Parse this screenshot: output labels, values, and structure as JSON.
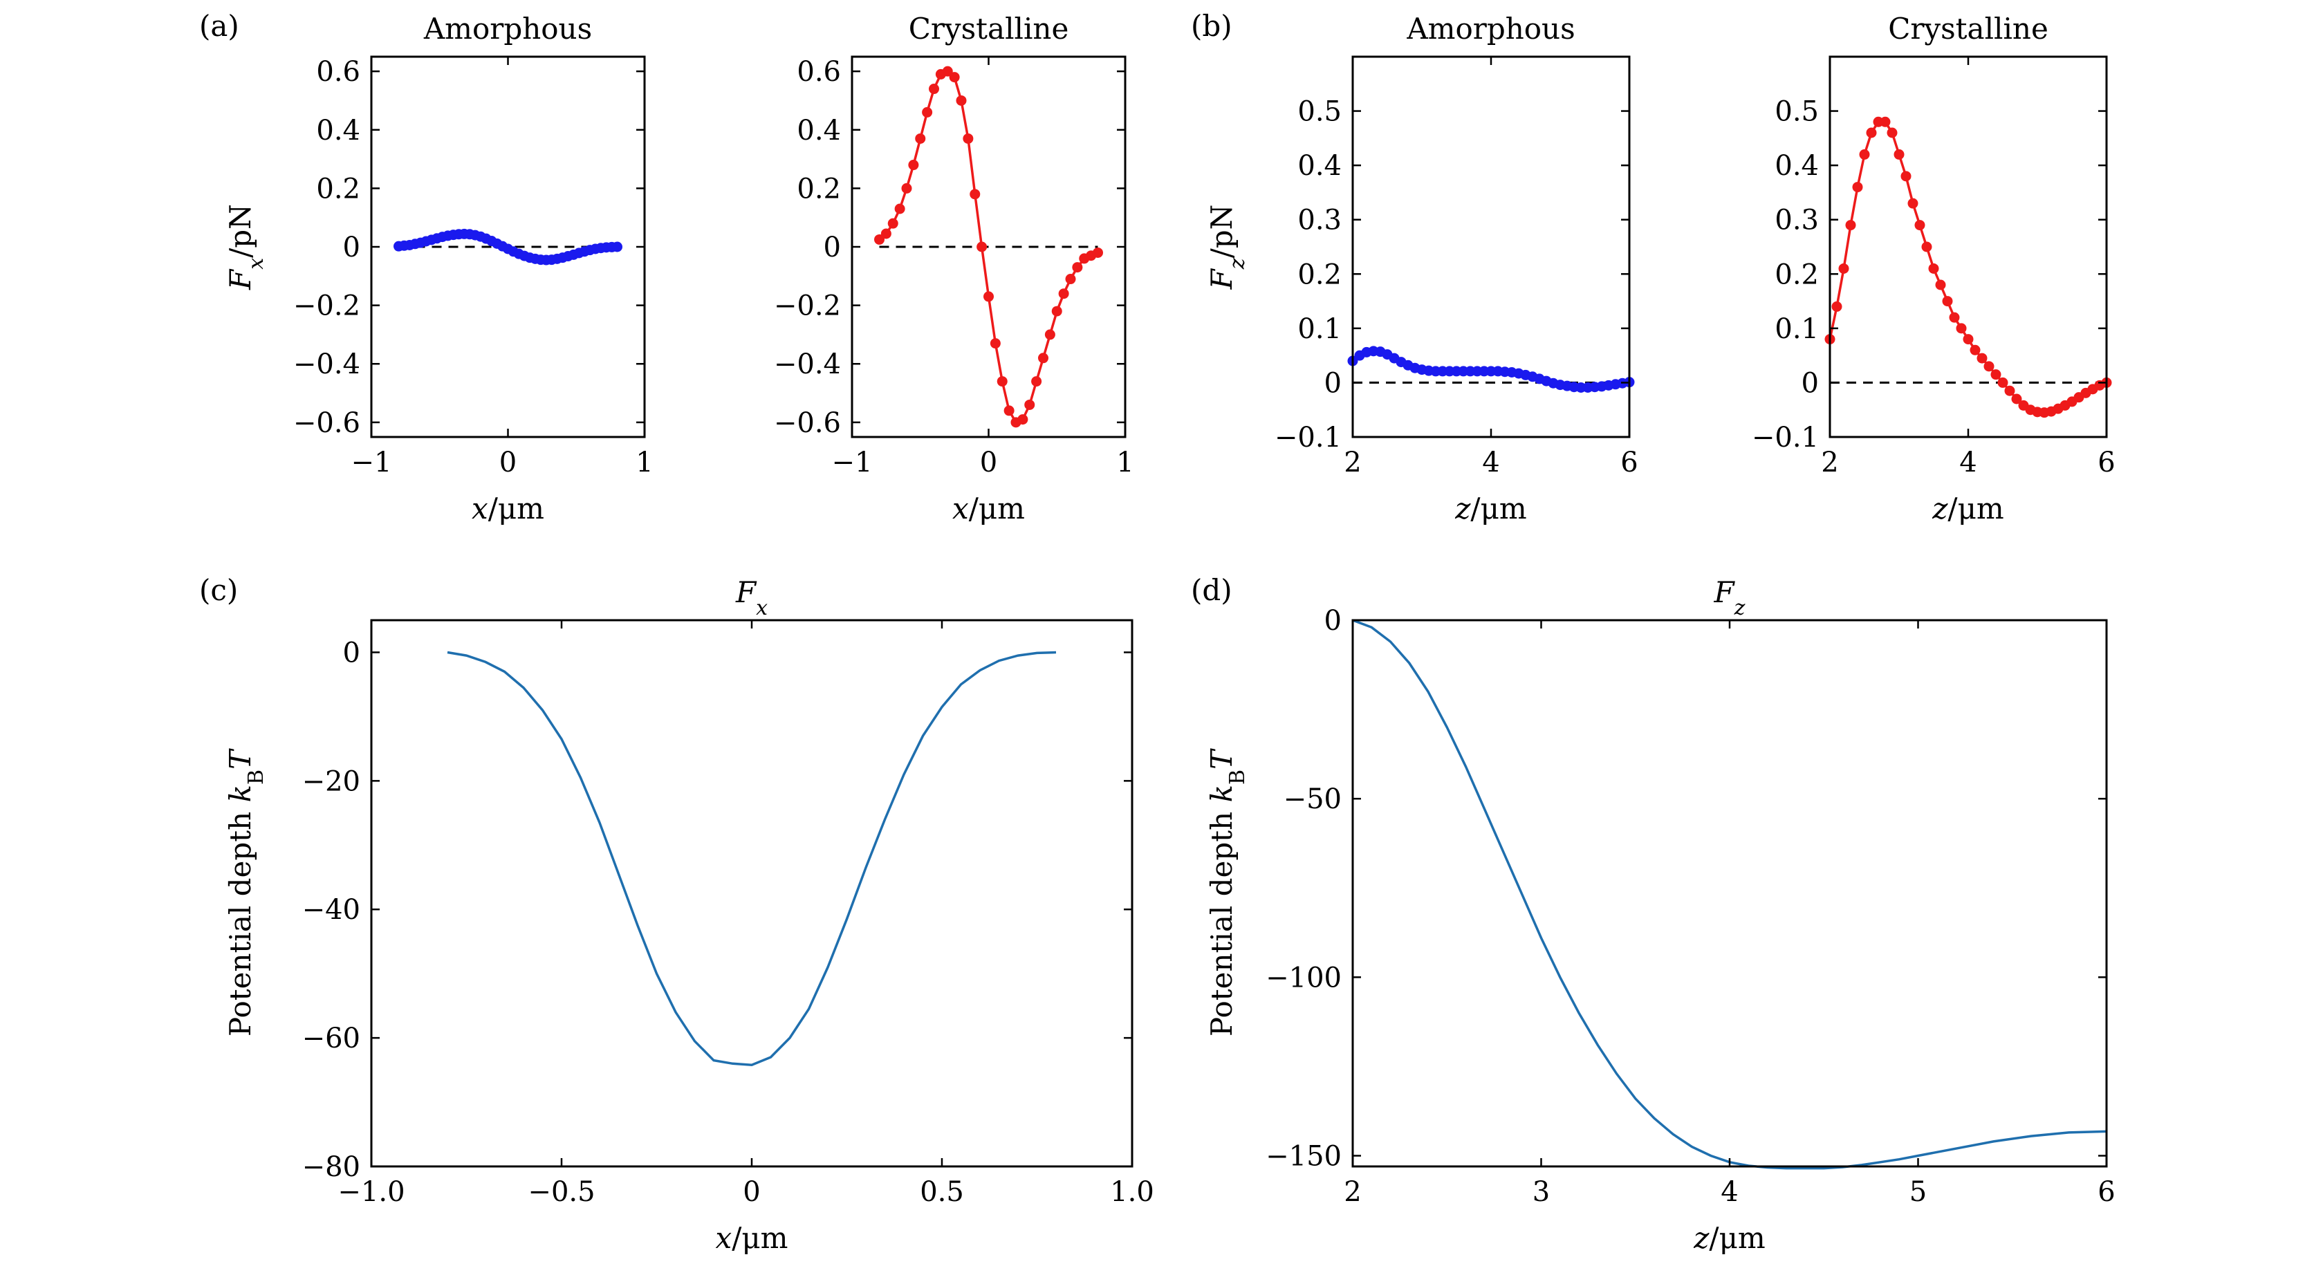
{
  "figure": {
    "panel_labels": [
      "(a)",
      "(b)",
      "(c)",
      "(d)"
    ]
  },
  "colors": {
    "amorphous": "#1a1aee",
    "crystalline": "#ee1a1a",
    "potential": "#1f6fae",
    "reference": "#000000"
  },
  "chart_data": [
    {
      "id": "a1",
      "type": "line",
      "title": "Amorphous",
      "xlabel": "x/μm",
      "ylabel": "Fx/pN",
      "xlim": [
        -1,
        1
      ],
      "ylim": [
        -0.65,
        0.65
      ],
      "xticks": [
        -1,
        0,
        1
      ],
      "xtick_labels": [
        "−1",
        "0",
        "1"
      ],
      "yticks": [
        -0.6,
        -0.4,
        -0.2,
        0,
        0.2,
        0.4,
        0.6
      ],
      "ytick_labels": [
        "−0.6",
        "−0.4",
        "−0.2",
        "0",
        "0.2",
        "0.4",
        "0.6"
      ],
      "reference_line": {
        "y": 0,
        "x": [
          -0.8,
          0.8
        ],
        "style": "dashed"
      },
      "series": [
        {
          "color": "#1a1aee",
          "marker": "circle",
          "x": [
            -0.8,
            -0.76,
            -0.72,
            -0.68,
            -0.64,
            -0.6,
            -0.56,
            -0.52,
            -0.48,
            -0.44,
            -0.4,
            -0.36,
            -0.32,
            -0.28,
            -0.24,
            -0.2,
            -0.16,
            -0.12,
            -0.08,
            -0.04,
            0,
            0.04,
            0.08,
            0.12,
            0.16,
            0.2,
            0.24,
            0.28,
            0.32,
            0.36,
            0.4,
            0.44,
            0.48,
            0.52,
            0.56,
            0.6,
            0.64,
            0.68,
            0.72,
            0.76,
            0.8
          ],
          "y": [
            0.002,
            0.004,
            0.006,
            0.01,
            0.014,
            0.019,
            0.024,
            0.029,
            0.034,
            0.038,
            0.041,
            0.043,
            0.044,
            0.043,
            0.04,
            0.035,
            0.028,
            0.02,
            0.011,
            0.002,
            -0.007,
            -0.016,
            -0.024,
            -0.031,
            -0.037,
            -0.041,
            -0.044,
            -0.045,
            -0.044,
            -0.041,
            -0.037,
            -0.032,
            -0.027,
            -0.021,
            -0.016,
            -0.011,
            -0.007,
            -0.004,
            -0.002,
            -0.001,
            0.0
          ]
        }
      ]
    },
    {
      "id": "a2",
      "type": "line",
      "title": "Crystalline",
      "xlabel": "x/μm",
      "ylabel": "",
      "xlim": [
        -1,
        1
      ],
      "ylim": [
        -0.65,
        0.65
      ],
      "xticks": [
        -1,
        0,
        1
      ],
      "xtick_labels": [
        "−1",
        "0",
        "1"
      ],
      "yticks": [
        -0.6,
        -0.4,
        -0.2,
        0,
        0.2,
        0.4,
        0.6
      ],
      "ytick_labels": [
        "−0.6",
        "−0.4",
        "−0.2",
        "0",
        "0.2",
        "0.4",
        "0.6"
      ],
      "reference_line": {
        "y": 0,
        "x": [
          -0.8,
          0.8
        ],
        "style": "dashed"
      },
      "series": [
        {
          "color": "#ee1a1a",
          "marker": "circle",
          "x": [
            -0.8,
            -0.75,
            -0.7,
            -0.65,
            -0.6,
            -0.55,
            -0.5,
            -0.45,
            -0.4,
            -0.35,
            -0.3,
            -0.25,
            -0.2,
            -0.15,
            -0.1,
            -0.05,
            0,
            0.05,
            0.1,
            0.15,
            0.2,
            0.25,
            0.3,
            0.35,
            0.4,
            0.45,
            0.5,
            0.55,
            0.6,
            0.65,
            0.7,
            0.75,
            0.8
          ],
          "y": [
            0.025,
            0.045,
            0.08,
            0.13,
            0.2,
            0.28,
            0.37,
            0.46,
            0.54,
            0.59,
            0.6,
            0.58,
            0.5,
            0.37,
            0.18,
            0.0,
            -0.17,
            -0.33,
            -0.46,
            -0.56,
            -0.6,
            -0.59,
            -0.54,
            -0.46,
            -0.38,
            -0.3,
            -0.22,
            -0.16,
            -0.11,
            -0.07,
            -0.04,
            -0.03,
            -0.02
          ]
        }
      ]
    },
    {
      "id": "b1",
      "type": "line",
      "title": "Amorphous",
      "xlabel": "z/μm",
      "ylabel": "Fz/pN",
      "xlim": [
        2,
        6
      ],
      "ylim": [
        -0.1,
        0.6
      ],
      "xticks": [
        2,
        4,
        6
      ],
      "xtick_labels": [
        "2",
        "4",
        "6"
      ],
      "yticks": [
        -0.1,
        0,
        0.1,
        0.2,
        0.3,
        0.4,
        0.5
      ],
      "ytick_labels": [
        "−0.1",
        "0",
        "0.1",
        "0.2",
        "0.3",
        "0.4",
        "0.5"
      ],
      "reference_line": {
        "y": 0,
        "x": [
          2,
          6
        ],
        "style": "dashed"
      },
      "series": [
        {
          "color": "#1a1aee",
          "marker": "circle",
          "x": [
            2.0,
            2.1,
            2.2,
            2.3,
            2.4,
            2.5,
            2.6,
            2.7,
            2.8,
            2.9,
            3.0,
            3.1,
            3.2,
            3.3,
            3.4,
            3.5,
            3.6,
            3.7,
            3.8,
            3.9,
            4.0,
            4.1,
            4.2,
            4.3,
            4.4,
            4.5,
            4.6,
            4.7,
            4.8,
            4.9,
            5.0,
            5.1,
            5.2,
            5.3,
            5.4,
            5.5,
            5.6,
            5.7,
            5.8,
            5.9,
            6.0
          ],
          "y": [
            0.04,
            0.05,
            0.056,
            0.058,
            0.057,
            0.052,
            0.045,
            0.038,
            0.032,
            0.027,
            0.024,
            0.022,
            0.021,
            0.021,
            0.021,
            0.021,
            0.021,
            0.021,
            0.021,
            0.021,
            0.021,
            0.021,
            0.02,
            0.019,
            0.017,
            0.014,
            0.011,
            0.007,
            0.003,
            -0.001,
            -0.004,
            -0.006,
            -0.008,
            -0.009,
            -0.009,
            -0.008,
            -0.007,
            -0.005,
            -0.003,
            -0.001,
            0.001
          ]
        }
      ]
    },
    {
      "id": "b2",
      "type": "line",
      "title": "Crystalline",
      "xlabel": "z/μm",
      "ylabel": "",
      "xlim": [
        2,
        6
      ],
      "ylim": [
        -0.1,
        0.6
      ],
      "xticks": [
        2,
        4,
        6
      ],
      "xtick_labels": [
        "2",
        "4",
        "6"
      ],
      "yticks": [
        -0.1,
        0,
        0.1,
        0.2,
        0.3,
        0.4,
        0.5
      ],
      "ytick_labels": [
        "−0.1",
        "0",
        "0.1",
        "0.2",
        "0.3",
        "0.4",
        "0.5"
      ],
      "reference_line": {
        "y": 0,
        "x": [
          2,
          6
        ],
        "style": "dashed"
      },
      "series": [
        {
          "color": "#ee1a1a",
          "marker": "circle",
          "x": [
            2.0,
            2.1,
            2.2,
            2.3,
            2.4,
            2.5,
            2.6,
            2.7,
            2.8,
            2.9,
            3.0,
            3.1,
            3.2,
            3.3,
            3.4,
            3.5,
            3.6,
            3.7,
            3.8,
            3.9,
            4.0,
            4.1,
            4.2,
            4.3,
            4.4,
            4.5,
            4.6,
            4.7,
            4.8,
            4.9,
            5.0,
            5.1,
            5.2,
            5.3,
            5.4,
            5.5,
            5.6,
            5.7,
            5.8,
            5.9,
            6.0
          ],
          "y": [
            0.08,
            0.14,
            0.21,
            0.29,
            0.36,
            0.42,
            0.46,
            0.48,
            0.48,
            0.46,
            0.42,
            0.38,
            0.33,
            0.29,
            0.25,
            0.21,
            0.18,
            0.15,
            0.12,
            0.1,
            0.08,
            0.06,
            0.045,
            0.03,
            0.015,
            0.0,
            -0.015,
            -0.03,
            -0.042,
            -0.05,
            -0.054,
            -0.055,
            -0.053,
            -0.048,
            -0.042,
            -0.035,
            -0.027,
            -0.019,
            -0.012,
            -0.005,
            0.0
          ]
        }
      ]
    },
    {
      "id": "c",
      "type": "line",
      "title": "Fx",
      "xlabel": "x/μm",
      "ylabel": "Potential depth kBT",
      "xlim": [
        -1.0,
        1.0
      ],
      "ylim": [
        -80,
        5
      ],
      "xticks": [
        -1.0,
        -0.5,
        0,
        0.5,
        1.0
      ],
      "xtick_labels": [
        "−1.0",
        "−0.5",
        "0",
        "0.5",
        "1.0"
      ],
      "yticks": [
        -80,
        -60,
        -40,
        -20,
        0
      ],
      "ytick_labels": [
        "−80",
        "−60",
        "−40",
        "−20",
        "0"
      ],
      "series": [
        {
          "color": "#1f6fae",
          "x": [
            -0.8,
            -0.75,
            -0.7,
            -0.65,
            -0.6,
            -0.55,
            -0.5,
            -0.45,
            -0.4,
            -0.35,
            -0.3,
            -0.25,
            -0.2,
            -0.15,
            -0.1,
            -0.05,
            0.0,
            0.05,
            0.1,
            0.15,
            0.2,
            0.25,
            0.3,
            0.35,
            0.4,
            0.45,
            0.5,
            0.55,
            0.6,
            0.65,
            0.7,
            0.75,
            0.8
          ],
          "y": [
            0,
            -0.5,
            -1.5,
            -3.0,
            -5.5,
            -9.0,
            -13.5,
            -19.5,
            -26.5,
            -34.5,
            -42.5,
            -50.0,
            -56.0,
            -60.5,
            -63.5,
            -64.0,
            -64.2,
            -63.0,
            -60.0,
            -55.5,
            -49.0,
            -41.5,
            -33.5,
            -26.0,
            -19.0,
            -13.0,
            -8.5,
            -5.0,
            -2.8,
            -1.3,
            -0.5,
            -0.1,
            0
          ]
        }
      ]
    },
    {
      "id": "d",
      "type": "line",
      "title": "Fz",
      "xlabel": "z/μm",
      "ylabel": "Potential depth kBT",
      "xlim": [
        2,
        6
      ],
      "ylim": [
        -153,
        0
      ],
      "xticks": [
        2,
        3,
        4,
        5,
        6
      ],
      "xtick_labels": [
        "2",
        "3",
        "4",
        "5",
        "6"
      ],
      "yticks": [
        -150,
        -100,
        -50,
        0
      ],
      "ytick_labels": [
        "−150",
        "−100",
        "−50",
        "0"
      ],
      "series": [
        {
          "color": "#1f6fae",
          "x": [
            2.0,
            2.1,
            2.2,
            2.3,
            2.4,
            2.5,
            2.6,
            2.7,
            2.8,
            2.9,
            3.0,
            3.1,
            3.2,
            3.3,
            3.4,
            3.5,
            3.6,
            3.7,
            3.8,
            3.9,
            4.0,
            4.1,
            4.2,
            4.3,
            4.4,
            4.5,
            4.6,
            4.7,
            4.8,
            4.9,
            5.0,
            5.2,
            5.4,
            5.6,
            5.8,
            6.0
          ],
          "y": [
            0,
            -2,
            -6,
            -12,
            -20,
            -30,
            -41,
            -53,
            -65,
            -77,
            -89,
            -100,
            -110,
            -119,
            -127,
            -134,
            -139.5,
            -144,
            -147.5,
            -150,
            -151.8,
            -152.8,
            -153.3,
            -153.5,
            -153.5,
            -153.5,
            -153.2,
            -152.6,
            -151.8,
            -151.0,
            -150.0,
            -148.0,
            -146.0,
            -144.5,
            -143.5,
            -143.2
          ]
        }
      ]
    }
  ]
}
